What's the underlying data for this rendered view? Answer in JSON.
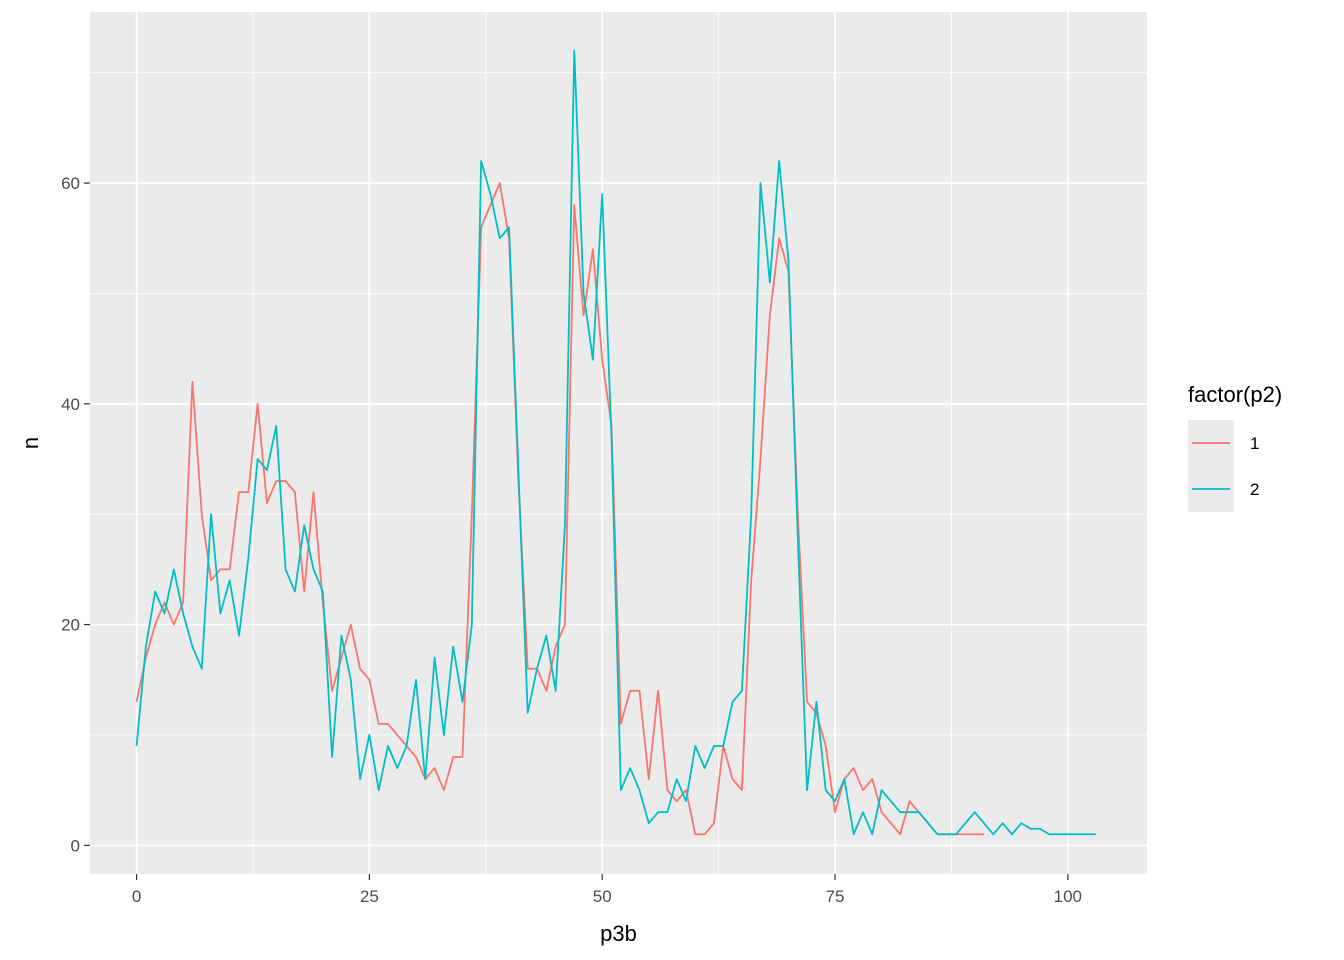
{
  "chart_data": {
    "type": "line",
    "xlabel": "p3b",
    "ylabel": "n",
    "xlim": [
      -5,
      108.5
    ],
    "ylim": [
      -2.6,
      75.5
    ],
    "x_ticks": [
      0,
      25,
      50,
      75,
      100
    ],
    "y_ticks": [
      0,
      20,
      40,
      60
    ],
    "grid": true,
    "legend": {
      "title": "factor(p2)",
      "placement": "right"
    },
    "colors": {
      "panel": "#ebebeb",
      "grid": "#ffffff"
    },
    "series": [
      {
        "name": "1",
        "color": "#f8766d",
        "x": [
          0,
          1,
          2,
          3,
          4,
          5,
          6,
          7,
          8,
          9,
          10,
          11,
          12,
          13,
          14,
          15,
          16,
          17,
          18,
          19,
          20,
          21,
          22,
          23,
          24,
          25,
          26,
          27,
          28,
          29,
          30,
          31,
          32,
          33,
          34,
          35,
          36,
          37,
          38,
          39,
          40,
          41,
          42,
          43,
          44,
          45,
          46,
          47,
          48,
          49,
          50,
          51,
          52,
          53,
          54,
          55,
          56,
          57,
          58,
          59,
          60,
          61,
          62,
          63,
          64,
          65,
          66,
          67,
          68,
          69,
          70,
          71,
          72,
          73,
          74,
          75,
          76,
          77,
          78,
          79,
          80,
          81,
          82,
          83,
          84,
          85,
          86,
          87,
          88,
          89,
          90,
          91
        ],
        "y": [
          13,
          17,
          20,
          22,
          20,
          22,
          42,
          30,
          24,
          25,
          25,
          32,
          32,
          40,
          31,
          33,
          33,
          32,
          23,
          32,
          22,
          14,
          17,
          20,
          16,
          15,
          11,
          11,
          10,
          9,
          8,
          6,
          7,
          5,
          8,
          8,
          30,
          56,
          58,
          60,
          55,
          33,
          16,
          16,
          14,
          18,
          20,
          58,
          48,
          54,
          44,
          38,
          11,
          14,
          14,
          6,
          14,
          5,
          4,
          5,
          1,
          1,
          2,
          9,
          6,
          5,
          24,
          35,
          48,
          55,
          52,
          30,
          13,
          12,
          9,
          3,
          6,
          7,
          5,
          6,
          3,
          2,
          1,
          4,
          3,
          2,
          1,
          1,
          1,
          1,
          1,
          1
        ]
      },
      {
        "name": "2",
        "color": "#00bfc4",
        "x": [
          0,
          1,
          2,
          3,
          4,
          5,
          6,
          7,
          8,
          9,
          10,
          11,
          12,
          13,
          14,
          15,
          16,
          17,
          18,
          19,
          20,
          21,
          22,
          23,
          24,
          25,
          26,
          27,
          28,
          29,
          30,
          31,
          32,
          33,
          34,
          35,
          36,
          37,
          38,
          39,
          40,
          41,
          42,
          43,
          44,
          45,
          46,
          47,
          48,
          49,
          50,
          51,
          52,
          53,
          54,
          55,
          56,
          57,
          58,
          59,
          60,
          61,
          62,
          63,
          64,
          65,
          66,
          67,
          68,
          69,
          70,
          71,
          72,
          73,
          74,
          75,
          76,
          77,
          78,
          79,
          80,
          81,
          82,
          83,
          84,
          85,
          86,
          87,
          88,
          89,
          90,
          91,
          92,
          93,
          94,
          95,
          96,
          97,
          98,
          99,
          100,
          101,
          102,
          103
        ],
        "y": [
          9,
          18,
          23,
          21,
          25,
          21,
          18,
          16,
          30,
          21,
          24,
          19,
          26,
          35,
          34,
          38,
          25,
          23,
          29,
          25,
          23,
          8,
          19,
          15,
          6,
          10,
          5,
          9,
          7,
          9,
          15,
          6,
          17,
          10,
          18,
          13,
          20,
          62,
          59,
          55,
          56,
          34,
          12,
          16,
          19,
          14,
          29,
          72,
          50,
          44,
          59,
          37,
          5,
          7,
          5,
          2,
          3,
          3,
          6,
          4,
          9,
          7,
          9,
          9,
          13,
          14,
          30,
          60,
          51,
          62,
          53,
          28,
          5,
          13,
          5,
          4,
          6,
          1,
          3,
          1,
          5,
          4,
          3,
          3,
          3,
          2,
          1,
          1,
          1,
          2,
          3,
          2,
          1,
          2,
          1,
          2,
          1.5,
          1.5,
          1,
          1,
          1,
          1,
          1,
          1
        ]
      }
    ]
  }
}
